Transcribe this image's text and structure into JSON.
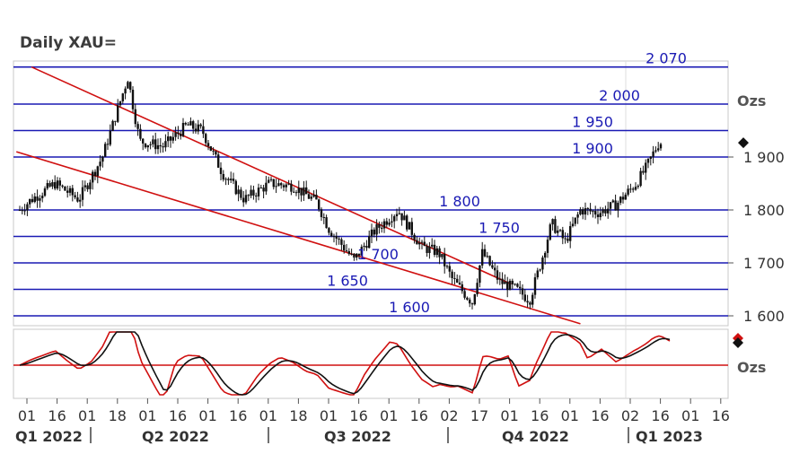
{
  "title": "Daily XAU=",
  "chart_data": {
    "type": "candlestick",
    "title": "Daily XAU=",
    "ylabel": "Ozs",
    "ylim": [
      1585,
      1965
    ],
    "y_ticks": [
      1600,
      1700,
      1800,
      1900
    ],
    "y_tick_labels": [
      "1 600",
      "1 700",
      "1 800",
      "1 900"
    ],
    "last_price_marker": 1927,
    "levels": [
      {
        "value": 2070,
        "label": "2 070"
      },
      {
        "value": 2000,
        "label": "2 000"
      },
      {
        "value": 1950,
        "label": "1 950"
      },
      {
        "value": 1900,
        "label": "1 900"
      },
      {
        "value": 1800,
        "label": "1 800"
      },
      {
        "value": 1750,
        "label": "1 750"
      },
      {
        "value": 1700,
        "label": "1 700"
      },
      {
        "value": 1650,
        "label": "1 650"
      },
      {
        "value": 1600,
        "label": "1 600"
      }
    ],
    "channel_lines": [
      {
        "name": "upper",
        "start": {
          "date": "2022-01-10",
          "value": 2070
        },
        "end": {
          "date": "2022-10-21",
          "value": 1660
        }
      },
      {
        "name": "lower",
        "start": {
          "date": "2022-01-01",
          "value": 1910
        },
        "end": {
          "date": "2022-12-01",
          "value": 1585
        }
      }
    ],
    "x_ticks": [
      "01",
      "16",
      "01",
      "18",
      "01",
      "16",
      "01",
      "16",
      "01",
      "18",
      "01",
      "16",
      "01",
      "16",
      "02",
      "17",
      "01",
      "16",
      "01",
      "16",
      "02",
      "16",
      "01",
      "16"
    ],
    "quarters": [
      "Q1 2022",
      "Q2 2022",
      "Q3 2022",
      "Q4 2022",
      "Q1 2023"
    ],
    "price_path": [
      {
        "date": "2022-01-03",
        "value": 1800
      },
      {
        "date": "2022-01-10",
        "value": 1820
      },
      {
        "date": "2022-01-24",
        "value": 1850
      },
      {
        "date": "2022-02-07",
        "value": 1820
      },
      {
        "date": "2022-02-21",
        "value": 1900
      },
      {
        "date": "2022-03-08",
        "value": 2050
      },
      {
        "date": "2022-03-15",
        "value": 1930
      },
      {
        "date": "2022-03-29",
        "value": 1920
      },
      {
        "date": "2022-04-12",
        "value": 1960
      },
      {
        "date": "2022-04-21",
        "value": 1950
      },
      {
        "date": "2022-05-03",
        "value": 1870
      },
      {
        "date": "2022-05-16",
        "value": 1820
      },
      {
        "date": "2022-05-31",
        "value": 1850
      },
      {
        "date": "2022-06-14",
        "value": 1845
      },
      {
        "date": "2022-06-28",
        "value": 1815
      },
      {
        "date": "2022-07-05",
        "value": 1765
      },
      {
        "date": "2022-07-20",
        "value": 1705
      },
      {
        "date": "2022-08-01",
        "value": 1760
      },
      {
        "date": "2022-08-15",
        "value": 1800
      },
      {
        "date": "2022-08-29",
        "value": 1730
      },
      {
        "date": "2022-09-08",
        "value": 1720
      },
      {
        "date": "2022-09-16",
        "value": 1670
      },
      {
        "date": "2022-09-28",
        "value": 1625
      },
      {
        "date": "2022-10-04",
        "value": 1720
      },
      {
        "date": "2022-10-14",
        "value": 1665
      },
      {
        "date": "2022-10-24",
        "value": 1650
      },
      {
        "date": "2022-11-01",
        "value": 1630
      },
      {
        "date": "2022-11-08",
        "value": 1705
      },
      {
        "date": "2022-11-14",
        "value": 1775
      },
      {
        "date": "2022-11-22",
        "value": 1740
      },
      {
        "date": "2022-12-01",
        "value": 1800
      },
      {
        "date": "2022-12-12",
        "value": 1795
      },
      {
        "date": "2022-12-22",
        "value": 1810
      },
      {
        "date": "2023-01-03",
        "value": 1850
      },
      {
        "date": "2023-01-09",
        "value": 1880
      },
      {
        "date": "2023-01-16",
        "value": 1925
      },
      {
        "date": "2023-01-19",
        "value": 1930
      }
    ],
    "oscillator": {
      "ylabel": "Ozs",
      "last_marker_colors": [
        "#d01010",
        "#111111"
      ],
      "signal_color": "#d01010",
      "main_color": "#111111"
    }
  },
  "colors": {
    "candles": "#111111",
    "levels": "#1a1ab4",
    "channel": "#d01010",
    "panel_border": "#c8c8c8",
    "grid": "#dcdcdc"
  }
}
